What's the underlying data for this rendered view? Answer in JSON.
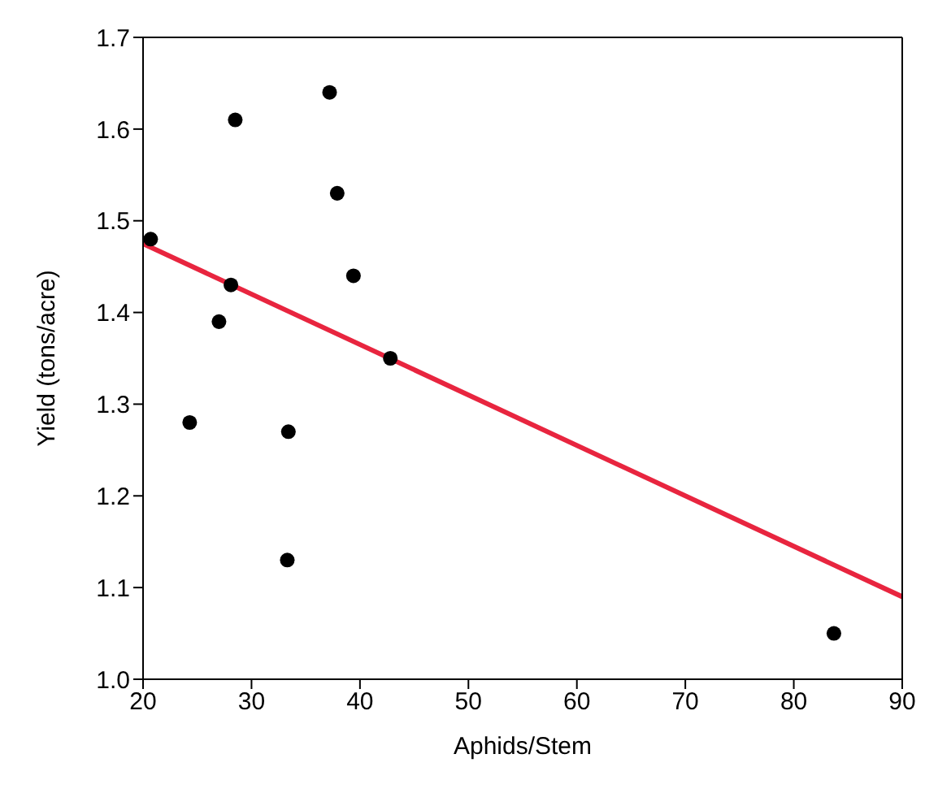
{
  "chart_data": {
    "type": "scatter",
    "xlabel": "Aphids/Stem",
    "ylabel": "Yield (tons/acre)",
    "xlim": [
      20,
      90
    ],
    "xticks": [
      20,
      30,
      40,
      50,
      60,
      70,
      80,
      90
    ],
    "ylim": [
      1.0,
      1.7
    ],
    "yticks": [
      {
        "value": 1.0,
        "label": "1.0"
      },
      1.1,
      1.2,
      1.3,
      1.4,
      1.5,
      1.6,
      1.7
    ],
    "grid": false,
    "series": [
      {
        "color": "#000000",
        "marker": "circle",
        "x": [
          20.7,
          28.5,
          37.2,
          37.9,
          39.4,
          28.1,
          27.0,
          42.8,
          24.3,
          33.4,
          33.3,
          83.7
        ],
        "values": [
          1.48,
          1.61,
          1.64,
          1.53,
          1.44,
          1.43,
          1.39,
          1.35,
          1.28,
          1.27,
          1.13,
          1.05
        ]
      },
      {
        "type": "line",
        "color": "#e8253f",
        "marker": "none",
        "x": [
          20,
          90
        ],
        "values": [
          1.475,
          1.09
        ]
      }
    ]
  }
}
